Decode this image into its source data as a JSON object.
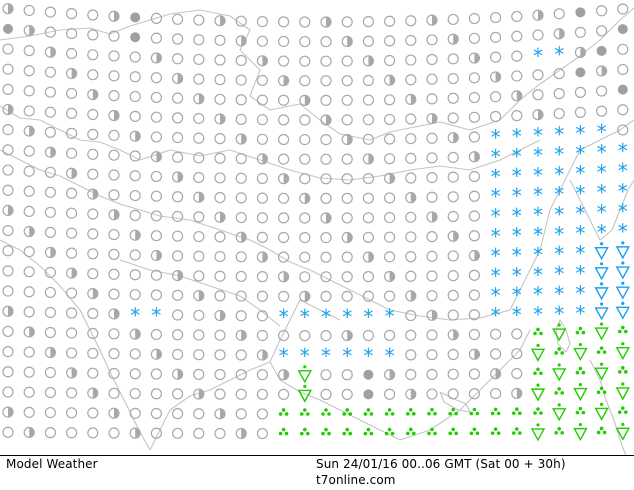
{
  "footer": {
    "left_label": "Model Weather",
    "valid_time": "Sun 24/01/16 00..06 GMT (Sat 00 + 30h)",
    "site": "t7online.com"
  },
  "colors": {
    "symbol_gray": "#a8a8a8",
    "drizzle_gray": "#a0a0a0",
    "snow_blue": "#1aa0ee",
    "rain_green": "#22cc00",
    "coastline": "#c4c4c4"
  },
  "legend_icons": {
    "clear": "open-circle-icon",
    "cloudy": "half-circle-icon",
    "drizzle": "filled-gray-dot-icon",
    "snow": "blue-asterisk-icon",
    "showers": "green-triangle-icon",
    "rain": "green-dots-icon"
  }
}
